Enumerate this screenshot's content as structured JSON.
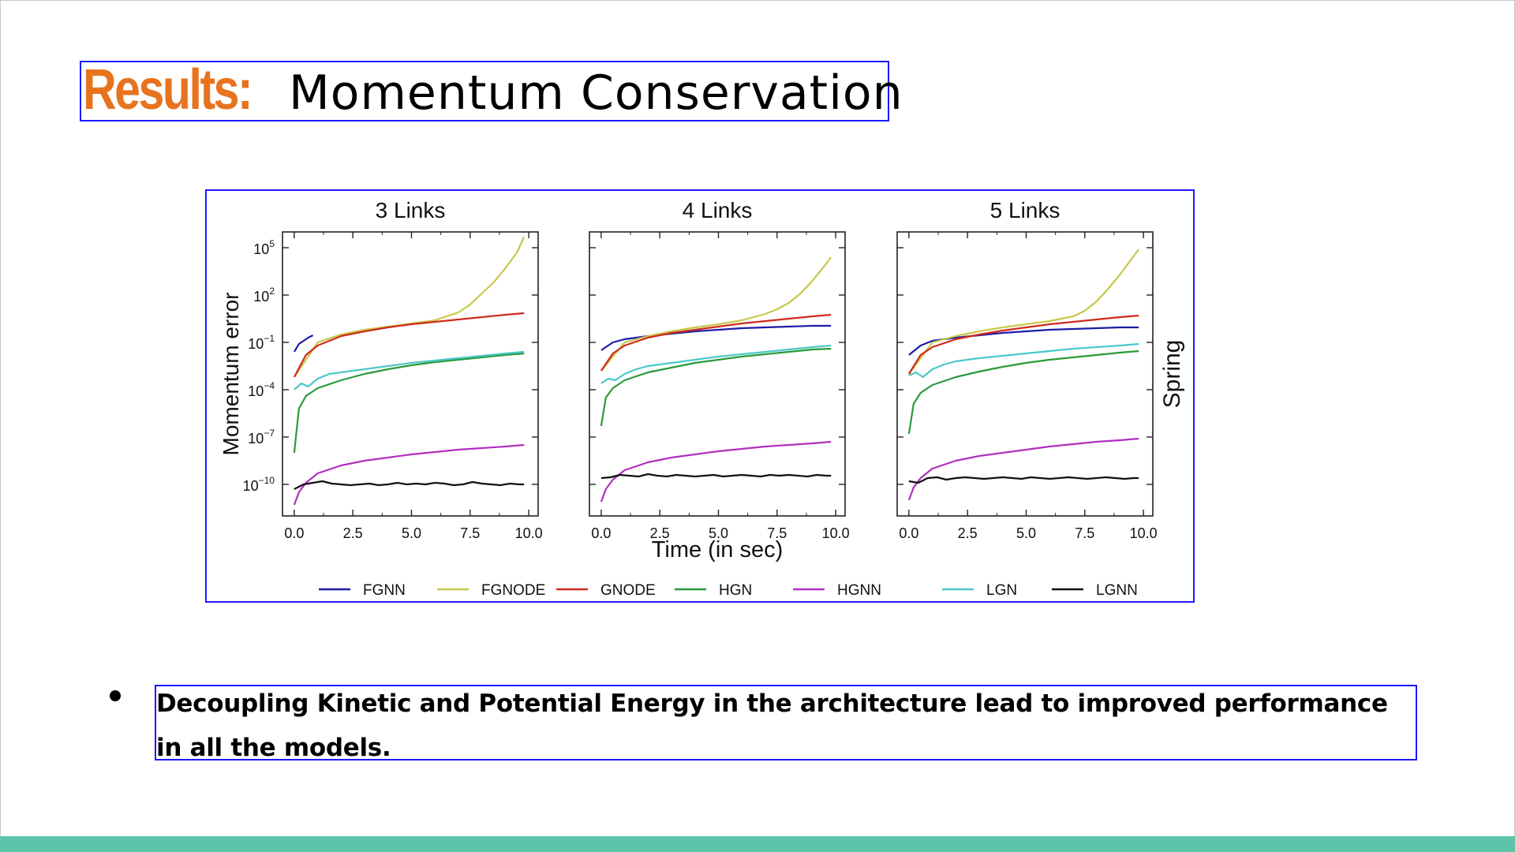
{
  "slide": {
    "title_strong": "Results:",
    "title_rest": "Momentum Conservation",
    "bullet_text": "Decoupling Kinetic and Potential Energy in the architecture lead to improved performance in all the models.",
    "accent_color": "#e8731f",
    "footer_color": "#5cc4a8"
  },
  "chart_data": {
    "type": "line",
    "ylabel": "Momentum error",
    "xlabel": "Time (in sec)",
    "row_label": "Spring",
    "yscale": "log",
    "ylim_exponent": [
      -12,
      6
    ],
    "xlim": [
      -0.5,
      10.4
    ],
    "x_ticks": [
      "0.0",
      "2.5",
      "5.0",
      "7.5",
      "10.0"
    ],
    "y_ticks": [
      {
        "base": "10",
        "exp": "5",
        "value": 5
      },
      {
        "base": "10",
        "exp": "2",
        "value": 2
      },
      {
        "base": "10",
        "exp": "−1",
        "value": -1
      },
      {
        "base": "10",
        "exp": "−4",
        "value": -4
      },
      {
        "base": "10",
        "exp": "−7",
        "value": -7
      },
      {
        "base": "10",
        "exp": "−10",
        "value": -10
      }
    ],
    "legend_position": "bottom",
    "legend": [
      {
        "name": "FGNN",
        "color": "#1c1ca8"
      },
      {
        "name": "FGNODE",
        "color": "#c8c84a"
      },
      {
        "name": "GNODE",
        "color": "#d02a1e"
      },
      {
        "name": "HGN",
        "color": "#2a9a3a"
      },
      {
        "name": "HGNN",
        "color": "#b030c0"
      },
      {
        "name": "LGN",
        "color": "#4cc8c8"
      },
      {
        "name": "LGNN",
        "color": "#111111"
      }
    ],
    "panels": [
      {
        "title": "3 Links",
        "series": [
          {
            "name": "FGNN",
            "x": [
              0.0,
              0.2,
              0.4,
              0.6,
              0.8
            ],
            "log10_y": [
              -1.6,
              -1.1,
              -0.9,
              -0.7,
              -0.55
            ]
          },
          {
            "name": "FGNODE",
            "x": [
              0.0,
              1,
              2,
              3,
              4,
              5,
              6,
              7,
              7.5,
              8,
              8.5,
              9,
              9.5,
              9.8
            ],
            "log10_y": [
              -3.2,
              -1.0,
              -0.5,
              -0.2,
              0.0,
              0.2,
              0.4,
              0.9,
              1.4,
              2.1,
              2.8,
              3.7,
              4.7,
              5.7
            ]
          },
          {
            "name": "GNODE",
            "x": [
              0.0,
              0.5,
              1,
              2,
              3,
              4,
              5,
              6,
              7,
              8,
              9,
              9.8
            ],
            "log10_y": [
              -3.2,
              -1.8,
              -1.2,
              -0.6,
              -0.3,
              -0.05,
              0.15,
              0.3,
              0.45,
              0.6,
              0.75,
              0.85
            ]
          },
          {
            "name": "HGN",
            "x": [
              0.0,
              0.2,
              0.5,
              1,
              2,
              3,
              4,
              5,
              6,
              7,
              8,
              9,
              9.8
            ],
            "log10_y": [
              -8.0,
              -5.2,
              -4.4,
              -3.9,
              -3.4,
              -3.0,
              -2.7,
              -2.45,
              -2.25,
              -2.1,
              -1.95,
              -1.8,
              -1.7
            ]
          },
          {
            "name": "HGNN",
            "x": [
              0.0,
              0.2,
              0.5,
              1,
              2,
              3,
              4,
              5,
              6,
              7,
              8,
              9,
              9.8
            ],
            "log10_y": [
              -11.3,
              -10.5,
              -9.9,
              -9.3,
              -8.8,
              -8.5,
              -8.3,
              -8.1,
              -7.95,
              -7.8,
              -7.7,
              -7.6,
              -7.5
            ]
          },
          {
            "name": "LGN",
            "x": [
              0.0,
              0.3,
              0.6,
              1,
              1.5,
              2,
              3,
              4,
              5,
              6,
              7,
              8,
              9,
              9.8
            ],
            "log10_y": [
              -4.0,
              -3.6,
              -3.8,
              -3.3,
              -3.0,
              -2.9,
              -2.7,
              -2.5,
              -2.3,
              -2.15,
              -2.0,
              -1.85,
              -1.7,
              -1.6
            ]
          },
          {
            "name": "LGNN",
            "x": [
              0.0,
              0.4,
              0.8,
              1.2,
              1.6,
              2.0,
              2.4,
              2.8,
              3.2,
              3.6,
              4.0,
              4.4,
              4.8,
              5.2,
              5.6,
              6.0,
              6.4,
              6.8,
              7.2,
              7.6,
              8.0,
              8.4,
              8.8,
              9.2,
              9.6,
              9.8
            ],
            "log10_y": [
              -10.3,
              -10.0,
              -9.9,
              -9.8,
              -9.95,
              -10.0,
              -10.05,
              -10.0,
              -9.95,
              -10.05,
              -10.0,
              -9.9,
              -10.0,
              -9.95,
              -10.0,
              -9.9,
              -9.95,
              -10.05,
              -10.0,
              -9.85,
              -9.95,
              -10.0,
              -10.05,
              -9.95,
              -10.0,
              -10.0
            ]
          }
        ]
      },
      {
        "title": "4 Links",
        "series": [
          {
            "name": "FGNN",
            "x": [
              0.0,
              0.5,
              1,
              2,
              3,
              4,
              5,
              6,
              7,
              8,
              9,
              9.8
            ],
            "log10_y": [
              -1.5,
              -1.0,
              -0.8,
              -0.6,
              -0.45,
              -0.3,
              -0.2,
              -0.1,
              -0.05,
              0.0,
              0.05,
              0.05
            ]
          },
          {
            "name": "FGNODE",
            "x": [
              0.0,
              1,
              2,
              3,
              4,
              5,
              6,
              7,
              7.5,
              8,
              8.5,
              9,
              9.5,
              9.8
            ],
            "log10_y": [
              -2.8,
              -1.0,
              -0.6,
              -0.3,
              -0.05,
              0.15,
              0.4,
              0.8,
              1.1,
              1.5,
              2.1,
              2.9,
              3.8,
              4.4
            ]
          },
          {
            "name": "GNODE",
            "x": [
              0.0,
              0.5,
              1,
              2,
              3,
              4,
              5,
              6,
              7,
              8,
              9,
              9.8
            ],
            "log10_y": [
              -2.8,
              -1.7,
              -1.2,
              -0.7,
              -0.4,
              -0.2,
              0.0,
              0.2,
              0.35,
              0.5,
              0.65,
              0.75
            ]
          },
          {
            "name": "HGN",
            "x": [
              0.0,
              0.2,
              0.5,
              1,
              2,
              3,
              4,
              5,
              6,
              7,
              8,
              9,
              9.8
            ],
            "log10_y": [
              -6.3,
              -4.5,
              -3.9,
              -3.4,
              -2.9,
              -2.6,
              -2.3,
              -2.1,
              -1.9,
              -1.75,
              -1.6,
              -1.45,
              -1.4
            ]
          },
          {
            "name": "HGNN",
            "x": [
              0.0,
              0.2,
              0.5,
              1,
              2,
              3,
              4,
              5,
              6,
              7,
              8,
              9,
              9.8
            ],
            "log10_y": [
              -11.1,
              -10.3,
              -9.7,
              -9.1,
              -8.6,
              -8.3,
              -8.1,
              -7.9,
              -7.75,
              -7.6,
              -7.5,
              -7.4,
              -7.3
            ]
          },
          {
            "name": "LGN",
            "x": [
              0.0,
              0.3,
              0.6,
              1,
              1.5,
              2,
              3,
              4,
              5,
              6,
              7,
              8,
              9,
              9.8
            ],
            "log10_y": [
              -3.6,
              -3.3,
              -3.4,
              -3.0,
              -2.7,
              -2.5,
              -2.3,
              -2.1,
              -1.9,
              -1.75,
              -1.6,
              -1.45,
              -1.3,
              -1.2
            ]
          },
          {
            "name": "LGNN",
            "x": [
              0.0,
              0.4,
              0.8,
              1.2,
              1.6,
              2.0,
              2.4,
              2.8,
              3.2,
              3.6,
              4.0,
              4.4,
              4.8,
              5.2,
              5.6,
              6.0,
              6.4,
              6.8,
              7.2,
              7.6,
              8.0,
              8.4,
              8.8,
              9.2,
              9.6,
              9.8
            ],
            "log10_y": [
              -9.6,
              -9.55,
              -9.4,
              -9.45,
              -9.5,
              -9.35,
              -9.45,
              -9.5,
              -9.4,
              -9.45,
              -9.5,
              -9.45,
              -9.4,
              -9.5,
              -9.45,
              -9.4,
              -9.45,
              -9.5,
              -9.4,
              -9.45,
              -9.4,
              -9.45,
              -9.5,
              -9.4,
              -9.45,
              -9.45
            ]
          }
        ]
      },
      {
        "title": "5 Links",
        "series": [
          {
            "name": "FGNN",
            "x": [
              0.0,
              0.5,
              1,
              2,
              3,
              4,
              5,
              6,
              7,
              8,
              9,
              9.8
            ],
            "log10_y": [
              -1.8,
              -1.2,
              -0.9,
              -0.7,
              -0.55,
              -0.4,
              -0.3,
              -0.2,
              -0.15,
              -0.1,
              -0.05,
              -0.05
            ]
          },
          {
            "name": "FGNODE",
            "x": [
              0.0,
              1,
              2,
              3,
              4,
              5,
              6,
              7,
              7.5,
              8,
              8.5,
              9,
              9.5,
              9.8
            ],
            "log10_y": [
              -3.0,
              -1.0,
              -0.6,
              -0.3,
              -0.05,
              0.15,
              0.35,
              0.65,
              1.0,
              1.6,
              2.4,
              3.3,
              4.3,
              4.9
            ]
          },
          {
            "name": "GNODE",
            "x": [
              0.0,
              0.5,
              1,
              2,
              3,
              4,
              5,
              6,
              7,
              8,
              9,
              9.8
            ],
            "log10_y": [
              -3.0,
              -1.8,
              -1.3,
              -0.8,
              -0.5,
              -0.25,
              -0.05,
              0.15,
              0.3,
              0.45,
              0.6,
              0.7
            ]
          },
          {
            "name": "HGN",
            "x": [
              0.0,
              0.2,
              0.5,
              1,
              2,
              3,
              4,
              5,
              6,
              7,
              8,
              9,
              9.8
            ],
            "log10_y": [
              -6.8,
              -4.9,
              -4.2,
              -3.7,
              -3.2,
              -2.85,
              -2.55,
              -2.3,
              -2.1,
              -1.95,
              -1.8,
              -1.65,
              -1.55
            ]
          },
          {
            "name": "HGNN",
            "x": [
              0.0,
              0.2,
              0.5,
              1,
              2,
              3,
              4,
              5,
              6,
              7,
              8,
              9,
              9.8
            ],
            "log10_y": [
              -11.0,
              -10.2,
              -9.6,
              -9.0,
              -8.5,
              -8.2,
              -8.0,
              -7.8,
              -7.6,
              -7.45,
              -7.3,
              -7.2,
              -7.1
            ]
          },
          {
            "name": "LGN",
            "x": [
              0.0,
              0.3,
              0.6,
              1,
              1.5,
              2,
              3,
              4,
              5,
              6,
              7,
              8,
              9,
              9.8
            ],
            "log10_y": [
              -3.1,
              -2.9,
              -3.2,
              -2.7,
              -2.4,
              -2.2,
              -2.0,
              -1.85,
              -1.7,
              -1.55,
              -1.4,
              -1.3,
              -1.2,
              -1.1
            ]
          },
          {
            "name": "LGNN",
            "x": [
              0.0,
              0.4,
              0.8,
              1.2,
              1.6,
              2.0,
              2.4,
              2.8,
              3.2,
              3.6,
              4.0,
              4.4,
              4.8,
              5.2,
              5.6,
              6.0,
              6.4,
              6.8,
              7.2,
              7.6,
              8.0,
              8.4,
              8.8,
              9.2,
              9.6,
              9.8
            ],
            "log10_y": [
              -9.8,
              -9.9,
              -9.6,
              -9.55,
              -9.7,
              -9.6,
              -9.55,
              -9.6,
              -9.65,
              -9.6,
              -9.55,
              -9.6,
              -9.65,
              -9.55,
              -9.6,
              -9.65,
              -9.6,
              -9.55,
              -9.6,
              -9.65,
              -9.6,
              -9.55,
              -9.6,
              -9.65,
              -9.6,
              -9.6
            ]
          }
        ]
      }
    ]
  }
}
